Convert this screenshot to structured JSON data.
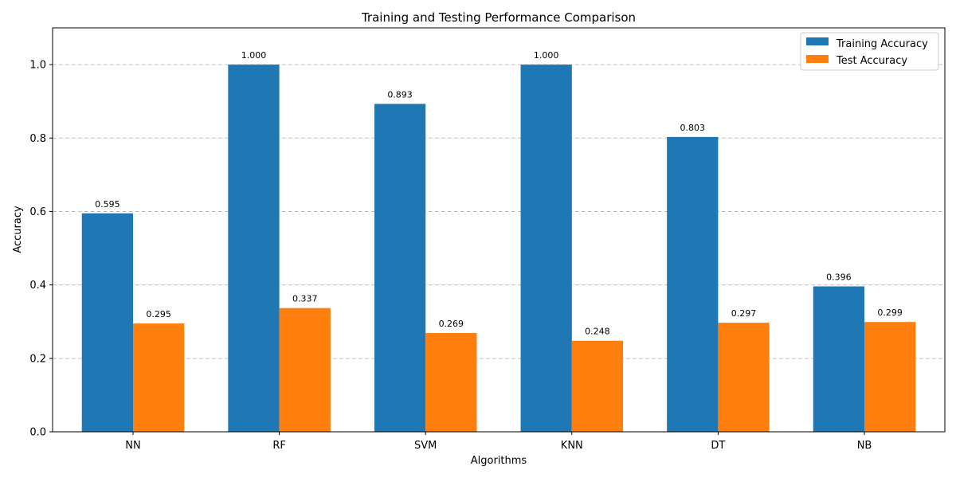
{
  "chart_data": {
    "type": "bar",
    "title": "Training and Testing Performance Comparison",
    "xlabel": "Algorithms",
    "ylabel": "Accuracy",
    "categories": [
      "NN",
      "RF",
      "SVM",
      "KNN",
      "DT",
      "NB"
    ],
    "series": [
      {
        "name": "Training Accuracy",
        "color": "#1f77b4",
        "values": [
          0.595,
          1.0,
          0.893,
          1.0,
          0.803,
          0.396
        ],
        "labels": [
          "0.595",
          "1.000",
          "0.893",
          "1.000",
          "0.803",
          "0.396"
        ]
      },
      {
        "name": "Test Accuracy",
        "color": "#ff7f0e",
        "values": [
          0.295,
          0.337,
          0.269,
          0.248,
          0.297,
          0.299
        ],
        "labels": [
          "0.295",
          "0.337",
          "0.269",
          "0.248",
          "0.297",
          "0.299"
        ]
      }
    ],
    "ylim": [
      0,
      1.1
    ],
    "yticks": [
      0.0,
      0.2,
      0.4,
      0.6,
      0.8,
      1.0
    ],
    "ytick_labels": [
      "0.0",
      "0.2",
      "0.4",
      "0.6",
      "0.8",
      "1.0"
    ],
    "grid": "y-dashed",
    "legend_position": "top-right"
  }
}
